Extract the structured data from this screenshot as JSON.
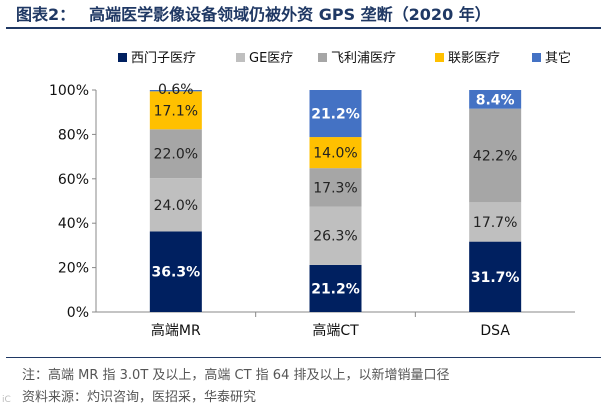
{
  "title": {
    "label": "图表2：",
    "text": "高端医学影像设备领域仍被外资 GPS 垄断（2020 年）"
  },
  "chart_data": {
    "type": "bar",
    "stacked": true,
    "percent": true,
    "categories": [
      "高端MR",
      "高端CT",
      "DSA"
    ],
    "series": [
      {
        "name": "西门子医疗",
        "color": "#002060",
        "values": [
          36.3,
          21.2,
          31.7
        ],
        "labels": [
          "36.3%",
          "21.2%",
          "31.7%"
        ],
        "label_color": "#ffffff"
      },
      {
        "name": "GE医疗",
        "color": "#bfbfbf",
        "values": [
          24.0,
          26.3,
          17.7
        ],
        "labels": [
          "24.0%",
          "26.3%",
          "17.7%"
        ],
        "label_color": "#222222"
      },
      {
        "name": "飞利浦医疗",
        "color": "#a6a6a6",
        "values": [
          22.0,
          17.3,
          42.2
        ],
        "labels": [
          "22.0%",
          "17.3%",
          "42.2%"
        ],
        "label_color": "#222222"
      },
      {
        "name": "联影医疗",
        "color": "#ffc000",
        "values": [
          17.1,
          14.0,
          0
        ],
        "labels": [
          "17.1%",
          "14.0%",
          ""
        ],
        "label_color": "#222222"
      },
      {
        "name": "其它",
        "color": "#4472c4",
        "values": [
          0.6,
          21.2,
          8.4
        ],
        "labels": [
          "0.6%",
          "21.2%",
          "8.4%"
        ],
        "label_color": "#ffffff"
      }
    ],
    "ylim": [
      0,
      100
    ],
    "yticks": [
      0,
      20,
      40,
      60,
      80,
      100
    ],
    "ytick_labels": [
      "0%",
      "20%",
      "40%",
      "60%",
      "80%",
      "100%"
    ],
    "legend_position": "top"
  },
  "notes": [
    "注：高端 MR 指 3.0T 及以上，高端 CT 指 64 排及以上，以新增销量口径",
    "资料来源：灼识咨询，医招采，华泰研究"
  ],
  "watermark": "iC"
}
